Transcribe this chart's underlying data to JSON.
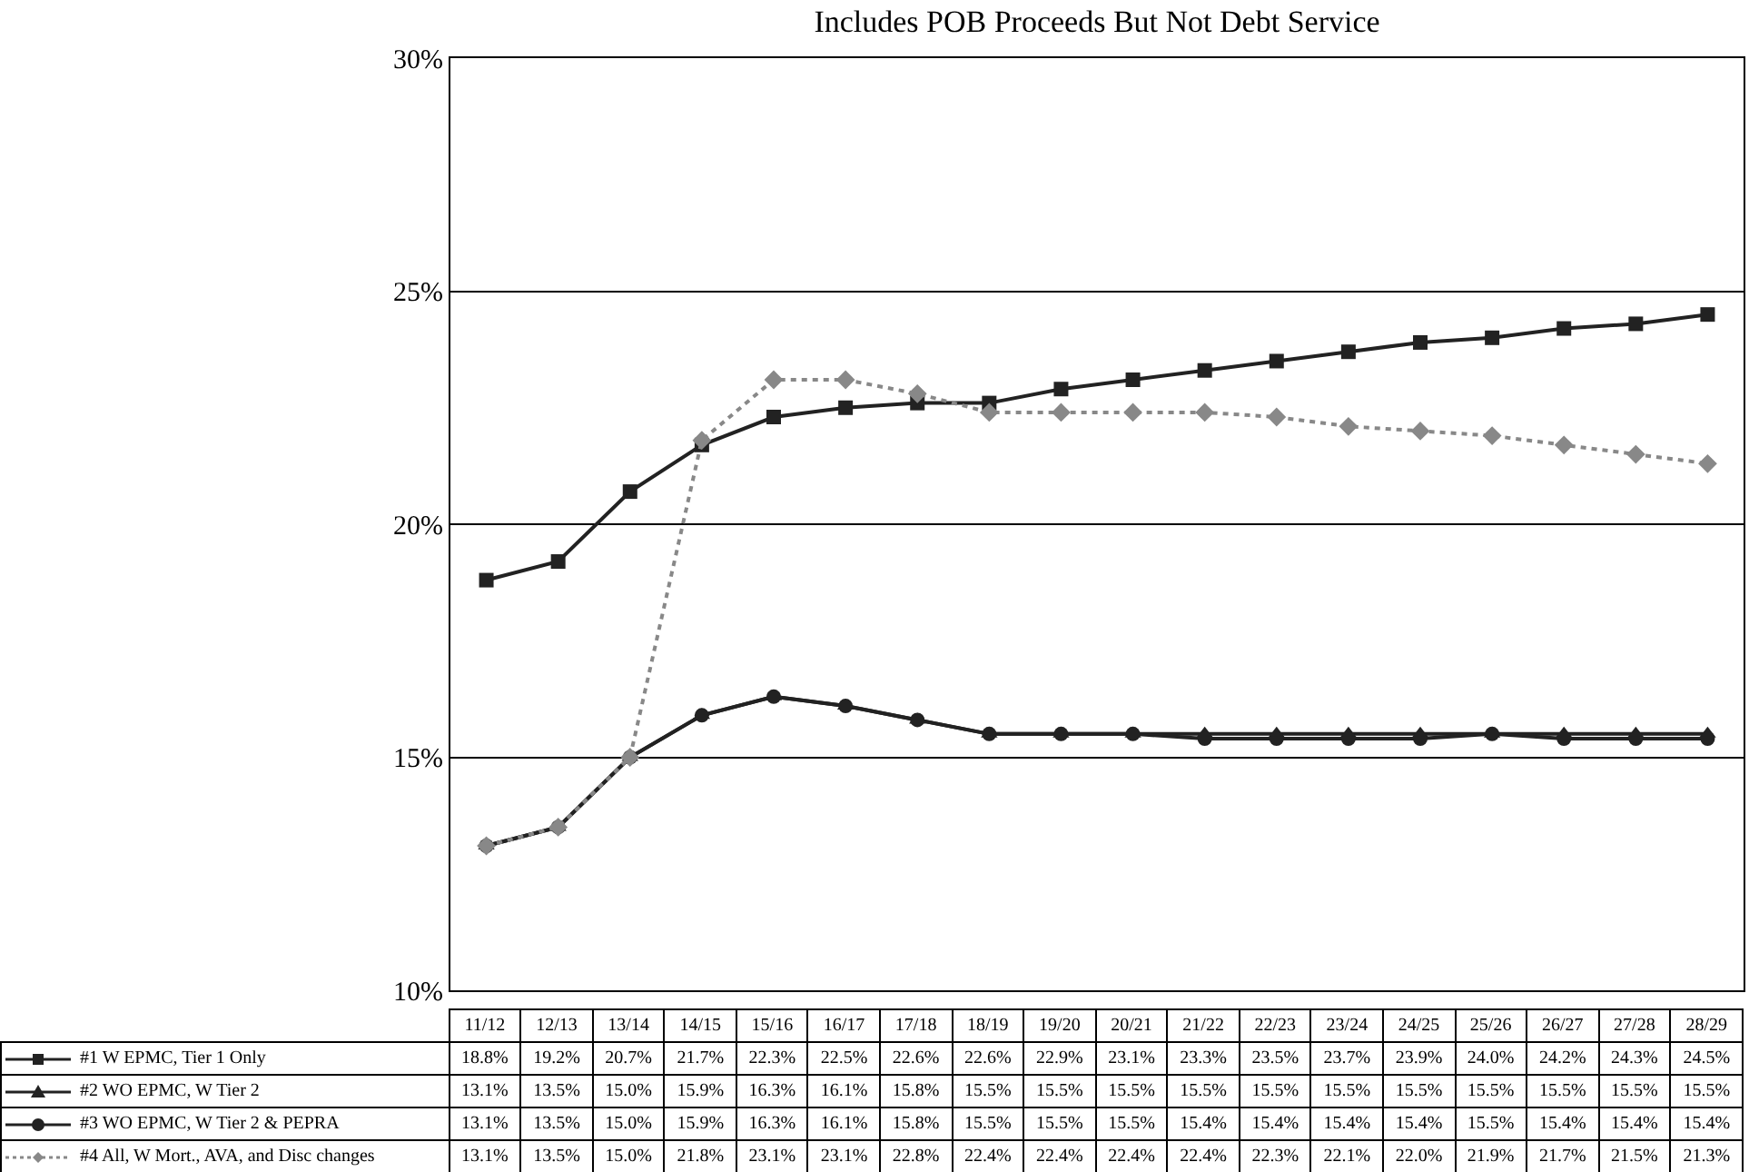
{
  "chart_data": {
    "type": "line",
    "title": "Includes POB Proceeds But Not Debt Service",
    "categories": [
      "11/12",
      "12/13",
      "13/14",
      "14/15",
      "15/16",
      "16/17",
      "17/18",
      "18/19",
      "19/20",
      "20/21",
      "21/22",
      "22/23",
      "23/24",
      "24/25",
      "25/26",
      "26/27",
      "27/28",
      "28/29"
    ],
    "ylim": [
      10,
      30
    ],
    "yticks": [
      {
        "value": 10,
        "label": "10%"
      },
      {
        "value": 15,
        "label": "15%"
      },
      {
        "value": 20,
        "label": "20%"
      },
      {
        "value": 25,
        "label": "25%"
      },
      {
        "value": 30,
        "label": "30%"
      }
    ],
    "grid": "y",
    "legend": "bottom",
    "series": [
      {
        "name": "#1 W EPMC, Tier 1 Only",
        "color": "#222222",
        "marker": "square",
        "line_style": "solid",
        "values": [
          18.8,
          19.2,
          20.7,
          21.7,
          22.3,
          22.5,
          22.6,
          22.6,
          22.9,
          23.1,
          23.3,
          23.5,
          23.7,
          23.9,
          24.0,
          24.2,
          24.3,
          24.5
        ],
        "value_labels": [
          "18.8%",
          "19.2%",
          "20.7%",
          "21.7%",
          "22.3%",
          "22.5%",
          "22.6%",
          "22.6%",
          "22.9%",
          "23.1%",
          "23.3%",
          "23.5%",
          "23.7%",
          "23.9%",
          "24.0%",
          "24.2%",
          "24.3%",
          "24.5%"
        ]
      },
      {
        "name": "#2 WO EPMC, W Tier 2",
        "color": "#222222",
        "marker": "triangle",
        "line_style": "solid",
        "values": [
          13.1,
          13.5,
          15.0,
          15.9,
          16.3,
          16.1,
          15.8,
          15.5,
          15.5,
          15.5,
          15.5,
          15.5,
          15.5,
          15.5,
          15.5,
          15.5,
          15.5,
          15.5
        ],
        "value_labels": [
          "13.1%",
          "13.5%",
          "15.0%",
          "15.9%",
          "16.3%",
          "16.1%",
          "15.8%",
          "15.5%",
          "15.5%",
          "15.5%",
          "15.5%",
          "15.5%",
          "15.5%",
          "15.5%",
          "15.5%",
          "15.5%",
          "15.5%",
          "15.5%"
        ]
      },
      {
        "name": "#3 WO EPMC, W Tier 2 & PEPRA",
        "color": "#222222",
        "marker": "circle",
        "line_style": "solid",
        "values": [
          13.1,
          13.5,
          15.0,
          15.9,
          16.3,
          16.1,
          15.8,
          15.5,
          15.5,
          15.5,
          15.4,
          15.4,
          15.4,
          15.4,
          15.5,
          15.4,
          15.4,
          15.4
        ],
        "value_labels": [
          "13.1%",
          "13.5%",
          "15.0%",
          "15.9%",
          "16.3%",
          "16.1%",
          "15.8%",
          "15.5%",
          "15.5%",
          "15.5%",
          "15.4%",
          "15.4%",
          "15.4%",
          "15.4%",
          "15.5%",
          "15.4%",
          "15.4%",
          "15.4%"
        ]
      },
      {
        "name": "#4 All, W Mort., AVA, and Disc changes",
        "color": "#888888",
        "marker": "diamond",
        "line_style": "dotted",
        "values": [
          13.1,
          13.5,
          15.0,
          21.8,
          23.1,
          23.1,
          22.8,
          22.4,
          22.4,
          22.4,
          22.4,
          22.3,
          22.1,
          22.0,
          21.9,
          21.7,
          21.5,
          21.3
        ],
        "value_labels": [
          "13.1%",
          "13.5%",
          "15.0%",
          "21.8%",
          "23.1%",
          "23.1%",
          "22.8%",
          "22.4%",
          "22.4%",
          "22.4%",
          "22.4%",
          "22.3%",
          "22.1%",
          "22.0%",
          "21.9%",
          "21.7%",
          "21.5%",
          "21.3%"
        ]
      }
    ]
  }
}
